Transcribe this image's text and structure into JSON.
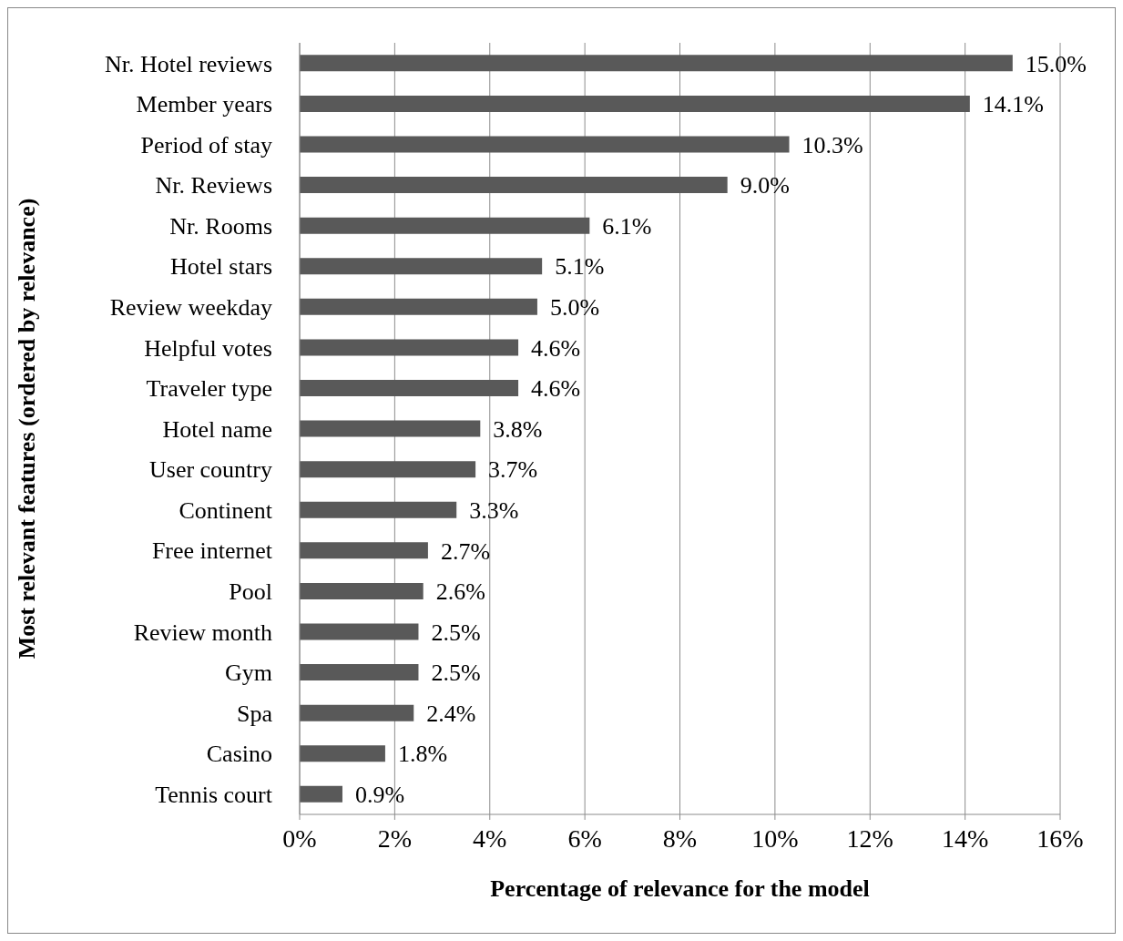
{
  "chart_data": {
    "type": "bar",
    "orientation": "horizontal",
    "xlabel": "Percentage of relevance for the model",
    "ylabel": "Most relevant features (ordered by relevance)",
    "categories": [
      "Nr. Hotel reviews",
      "Member years",
      "Period of stay",
      "Nr. Reviews",
      "Nr. Rooms",
      "Hotel stars",
      "Review weekday",
      "Helpful votes",
      "Traveler type",
      "Hotel name",
      "User country",
      "Continent",
      "Free internet",
      "Pool",
      "Review month",
      "Gym",
      "Spa",
      "Casino",
      "Tennis court"
    ],
    "values": [
      15.0,
      14.1,
      10.3,
      9.0,
      6.1,
      5.1,
      5.0,
      4.6,
      4.6,
      3.8,
      3.7,
      3.3,
      2.7,
      2.6,
      2.5,
      2.5,
      2.4,
      1.8,
      0.9
    ],
    "value_labels": [
      "15.0%",
      "14.1%",
      "10.3%",
      "9.0%",
      "6.1%",
      "5.1%",
      "5.0%",
      "4.6%",
      "4.6%",
      "3.8%",
      "3.7%",
      "3.3%",
      "2.7%",
      "2.6%",
      "2.5%",
      "2.5%",
      "2.4%",
      "1.8%",
      "0.9%"
    ],
    "color": "#595959",
    "xlim": [
      0,
      16
    ],
    "xticks": [
      {
        "value": 0,
        "label": "0%"
      },
      {
        "value": 2,
        "label": "2%"
      },
      {
        "value": 4,
        "label": "4%"
      },
      {
        "value": 6,
        "label": "6%"
      },
      {
        "value": 8,
        "label": "8%"
      },
      {
        "value": 10,
        "label": "10%"
      },
      {
        "value": 12,
        "label": "12%"
      },
      {
        "value": 14,
        "label": "14%"
      },
      {
        "value": 16,
        "label": "16%"
      }
    ],
    "grid": "x"
  }
}
